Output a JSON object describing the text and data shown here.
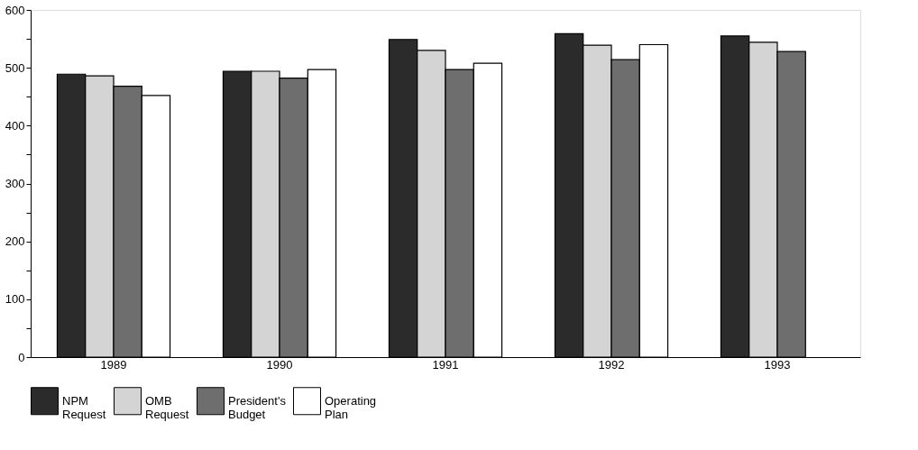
{
  "chart_data": {
    "type": "bar",
    "categories": [
      "1989",
      "1990",
      "1991",
      "1992",
      "1993"
    ],
    "series": [
      {
        "name": "NPM Request",
        "color": "#2b2b2b",
        "values": [
          489,
          494,
          549,
          559,
          555
        ]
      },
      {
        "name": "OMB Request",
        "color": "#d4d4d4",
        "values": [
          486,
          494,
          530,
          539,
          544
        ]
      },
      {
        "name": "President's Budget",
        "color": "#6e6e6e",
        "values": [
          468,
          482,
          497,
          514,
          528
        ]
      },
      {
        "name": "Operating Plan",
        "color": "#ffffff",
        "values": [
          452,
          497,
          508,
          540,
          null
        ]
      }
    ],
    "ylim": [
      0,
      600
    ],
    "yticks": [
      0,
      {
        "value": 50,
        "label": null
      },
      100,
      {
        "value": 150,
        "label": null
      },
      200,
      {
        "value": 250,
        "label": null
      },
      300,
      {
        "value": 350,
        "label": null
      },
      400,
      {
        "value": 450,
        "label": null
      },
      500,
      {
        "value": 550,
        "label": null
      },
      600
    ],
    "legend": "bottom",
    "grid": false
  }
}
